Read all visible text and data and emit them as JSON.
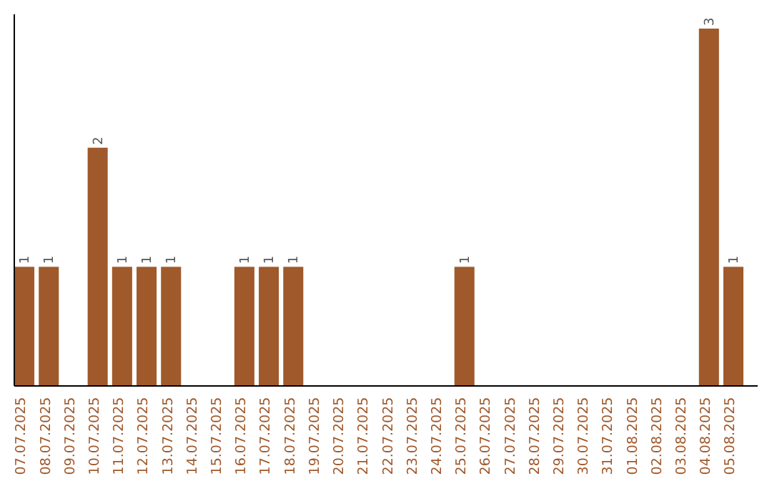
{
  "chart_data": {
    "type": "bar",
    "categories": [
      "07.07.2025",
      "08.07.2025",
      "09.07.2025",
      "10.07.2025",
      "11.07.2025",
      "12.07.2025",
      "13.07.2025",
      "14.07.2025",
      "15.07.2025",
      "16.07.2025",
      "17.07.2025",
      "18.07.2025",
      "19.07.2025",
      "20.07.2025",
      "21.07.2025",
      "22.07.2025",
      "23.07.2025",
      "24.07.2025",
      "25.07.2025",
      "26.07.2025",
      "27.07.2025",
      "28.07.2025",
      "29.07.2025",
      "30.07.2025",
      "31.07.2025",
      "01.08.2025",
      "02.08.2025",
      "03.08.2025",
      "04.08.2025",
      "05.08.2025"
    ],
    "values": [
      1,
      1,
      0,
      2,
      1,
      1,
      1,
      0,
      0,
      1,
      1,
      1,
      0,
      0,
      0,
      0,
      0,
      0,
      1,
      0,
      0,
      0,
      0,
      0,
      0,
      0,
      0,
      0,
      3,
      1
    ],
    "value_labels": [
      "1",
      "1",
      null,
      "2",
      "1",
      "1",
      "1",
      null,
      null,
      "1",
      "1",
      "1",
      null,
      null,
      null,
      null,
      null,
      null,
      "1",
      null,
      null,
      null,
      null,
      null,
      null,
      null,
      null,
      null,
      "3",
      "1"
    ],
    "color": "#a0592b",
    "grid": false
  }
}
